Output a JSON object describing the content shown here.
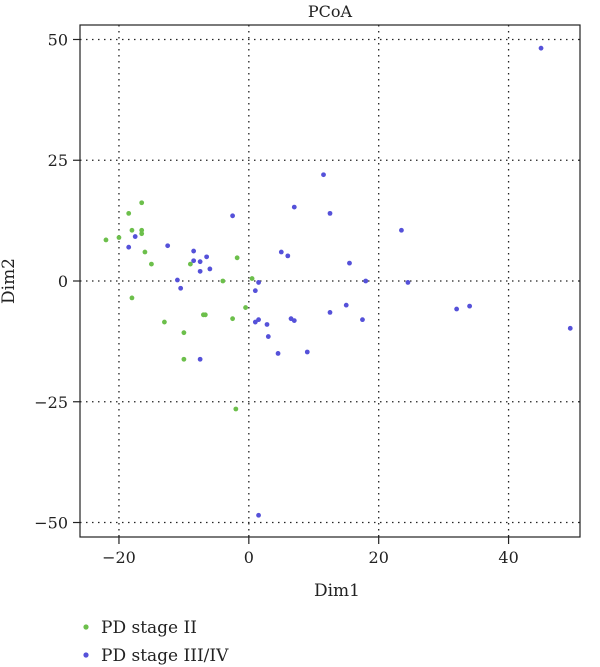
{
  "chart_data": {
    "type": "scatter",
    "title": "PCoA",
    "xlabel": "Dim1",
    "ylabel": "Dim2",
    "xlim": [
      -26,
      51
    ],
    "ylim": [
      -53,
      53
    ],
    "xticks": [
      -20,
      0,
      20,
      40
    ],
    "yticks": [
      -50,
      -25,
      0,
      25,
      50
    ],
    "xtick_labels": [
      "−20",
      "0",
      "20",
      "40"
    ],
    "ytick_labels": [
      "−50",
      "−25",
      "0",
      "25",
      "50"
    ],
    "grid": "dotted",
    "legend_position": "bottom-left",
    "series": [
      {
        "name": "PD stage II",
        "color": "#6cbf4b",
        "points": [
          [
            -22,
            8.5
          ],
          [
            -20,
            9
          ],
          [
            -18.5,
            14
          ],
          [
            -18,
            10.5
          ],
          [
            -16.5,
            16.2
          ],
          [
            -16.5,
            10.5
          ],
          [
            -16.5,
            9.8
          ],
          [
            -16,
            6
          ],
          [
            -15,
            3.5
          ],
          [
            -18,
            -3.5
          ],
          [
            -13,
            -8.5
          ],
          [
            -10,
            -10.7
          ],
          [
            -10,
            -16.2
          ],
          [
            -9,
            3.5
          ],
          [
            -7,
            -7
          ],
          [
            -6.7,
            -7
          ],
          [
            -4,
            0
          ],
          [
            -2.5,
            -7.8
          ],
          [
            -2,
            -26.5
          ],
          [
            -1.8,
            4.8
          ],
          [
            -0.5,
            -5.5
          ],
          [
            0.5,
            0.5
          ]
        ]
      },
      {
        "name": "PD stage III/IV",
        "color": "#5551d9",
        "points": [
          [
            45,
            48.2
          ],
          [
            11.5,
            22
          ],
          [
            7,
            15.3
          ],
          [
            12.5,
            14
          ],
          [
            -2.5,
            13.5
          ],
          [
            23.5,
            10.5
          ],
          [
            -17.5,
            9.2
          ],
          [
            -12.5,
            7.3
          ],
          [
            -18.5,
            7
          ],
          [
            -8.5,
            6.2
          ],
          [
            5,
            6
          ],
          [
            6,
            5.2
          ],
          [
            -6.5,
            5
          ],
          [
            -8.5,
            4.2
          ],
          [
            -7.5,
            4
          ],
          [
            -6,
            2.5
          ],
          [
            -7.5,
            2
          ],
          [
            15.5,
            3.7
          ],
          [
            -11,
            0.2
          ],
          [
            18,
            0
          ],
          [
            24.5,
            -0.3
          ],
          [
            1.5,
            -0.3
          ],
          [
            -10.5,
            -1.5
          ],
          [
            1,
            -2
          ],
          [
            32,
            -5.8
          ],
          [
            34,
            -5.2
          ],
          [
            15,
            -5
          ],
          [
            12.5,
            -6.5
          ],
          [
            17.5,
            -8
          ],
          [
            6.5,
            -7.8
          ],
          [
            7,
            -8.2
          ],
          [
            1.5,
            -8
          ],
          [
            1,
            -8.5
          ],
          [
            2.8,
            -9
          ],
          [
            3,
            -11.5
          ],
          [
            4.5,
            -15
          ],
          [
            9,
            -14.7
          ],
          [
            -7.5,
            -16.2
          ],
          [
            49.5,
            -9.8
          ],
          [
            1.5,
            -48.5
          ]
        ]
      }
    ]
  }
}
